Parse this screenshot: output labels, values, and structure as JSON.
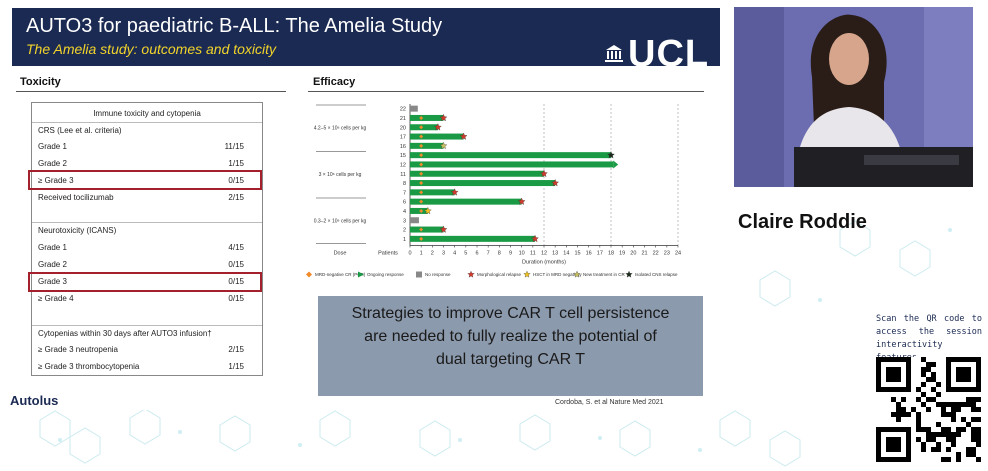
{
  "slide": {
    "title": "AUTO3 for paediatric B-ALL: The Amelia Study",
    "subtitle": "The Amelia study: outcomes and toxicity",
    "logo_text": "UCL",
    "toxicity_label": "Toxicity",
    "efficacy_label": "Efficacy",
    "message_lines": [
      "Strategies to improve CAR T cell persistence",
      "are needed to fully realize the potential of",
      "dual targeting CAR T"
    ],
    "citation": "Cordoba, S. et al Nature Med 2021",
    "company": "Autolus"
  },
  "toxicity_table": {
    "header": "Immune toxicity and cytopenia",
    "rows": [
      {
        "label": "CRS (Lee et al. criteria)",
        "value": "",
        "kind": "section"
      },
      {
        "label": "Grade 1",
        "value": "11/15",
        "kind": "row"
      },
      {
        "label": "Grade 2",
        "value": "1/15",
        "kind": "row"
      },
      {
        "label": "≥ Grade 3",
        "value": "0/15",
        "kind": "row",
        "highlight": true
      },
      {
        "label": "Received tocilizumab",
        "value": "2/15",
        "kind": "row"
      },
      {
        "label": "Neurotoxicity (ICANS)",
        "value": "",
        "kind": "section"
      },
      {
        "label": "Grade 1",
        "value": "4/15",
        "kind": "row"
      },
      {
        "label": "Grade 2",
        "value": "0/15",
        "kind": "row"
      },
      {
        "label": "Grade 3",
        "value": "0/15",
        "kind": "row",
        "highlight": true
      },
      {
        "label": "≥ Grade 4",
        "value": "0/15",
        "kind": "row"
      },
      {
        "label": "Cytopenias within 30 days after AUTO3 infusion†",
        "value": "",
        "kind": "section"
      },
      {
        "label": "≥ Grade 3 neutropenia",
        "value": "2/15",
        "kind": "row"
      },
      {
        "label": "≥ Grade 3 thrombocytopenia",
        "value": "1/15",
        "kind": "row"
      }
    ]
  },
  "chart_data": {
    "type": "bar",
    "orientation": "horizontal",
    "xlabel": "Duration (months)",
    "ylabel": "Patients",
    "xlim": [
      0,
      24
    ],
    "x_ticks": [
      0,
      1,
      2,
      3,
      4,
      5,
      6,
      7,
      8,
      9,
      10,
      11,
      12,
      13,
      14,
      15,
      16,
      17,
      18,
      19,
      20,
      21,
      22,
      23,
      24
    ],
    "dose_header": "Dose",
    "dose_groups": [
      {
        "label": "4.2–5 × 10⁶ cells per kg",
        "patients": [
          "22",
          "21",
          "20",
          "17",
          "16"
        ]
      },
      {
        "label": "3 × 10⁶ cells per kg",
        "patients": [
          "15",
          "12",
          "11",
          "8",
          "7"
        ]
      },
      {
        "label": "0.3–2 × 10⁶ cells per kg",
        "patients": [
          "6",
          "4",
          "3",
          "2",
          "1"
        ]
      }
    ],
    "patients": [
      {
        "id": "22",
        "duration": 0.7,
        "status": "no_response"
      },
      {
        "id": "21",
        "duration": 3.0,
        "status": "morphological_relapse"
      },
      {
        "id": "20",
        "duration": 2.5,
        "status": "morphological_relapse"
      },
      {
        "id": "17",
        "duration": 4.8,
        "status": "morphological_relapse"
      },
      {
        "id": "16",
        "duration": 3.0,
        "status": "new_treatment_in_cr"
      },
      {
        "id": "15",
        "duration": 18.0,
        "status": "isolated_cns_relapse"
      },
      {
        "id": "12",
        "duration": 18.2,
        "status": "ongoing"
      },
      {
        "id": "11",
        "duration": 12.0,
        "status": "morphological_relapse"
      },
      {
        "id": "8",
        "duration": 13.0,
        "status": "morphological_relapse"
      },
      {
        "id": "7",
        "duration": 4.0,
        "status": "morphological_relapse"
      },
      {
        "id": "6",
        "duration": 10.0,
        "status": "morphological_relapse"
      },
      {
        "id": "4",
        "duration": 1.6,
        "status": "hsct_in_mrd_negativity"
      },
      {
        "id": "3",
        "duration": 0.8,
        "status": "no_response"
      },
      {
        "id": "2",
        "duration": 3.0,
        "status": "morphological_relapse"
      },
      {
        "id": "1",
        "duration": 11.2,
        "status": "morphological_relapse"
      }
    ],
    "legend": [
      {
        "key": "mrd_negative_cr",
        "label": "MRD-negative CR (PCR)",
        "color": "#f08a2b"
      },
      {
        "key": "ongoing",
        "label": "Ongoing response",
        "color": "#1a9a45"
      },
      {
        "key": "no_response",
        "label": "No response",
        "color": "#888888"
      },
      {
        "key": "morphological_relapse",
        "label": "Morphological relapse",
        "color": "#d03a2a"
      },
      {
        "key": "hsct_in_mrd_negativity",
        "label": "HSCT in MRD negativity",
        "color": "#f0c020"
      },
      {
        "key": "new_treatment_in_cr",
        "label": "New treatment in CR",
        "color": "#c8c060"
      },
      {
        "key": "isolated_cns_relapse",
        "label": "Isolated CNS relapse",
        "color": "#1a2a1a"
      }
    ]
  },
  "video": {
    "speaker_name": "Claire Roddie"
  },
  "qr": {
    "lines": [
      "Scan the QR code to",
      "access the session",
      "interactivity features"
    ]
  },
  "colors": {
    "header_bg": "#1b2a53",
    "subtitle": "#f2d42a",
    "highlight": "#a3202c",
    "message_bg": "#8c9aad",
    "bar_green": "#1a9a45"
  }
}
